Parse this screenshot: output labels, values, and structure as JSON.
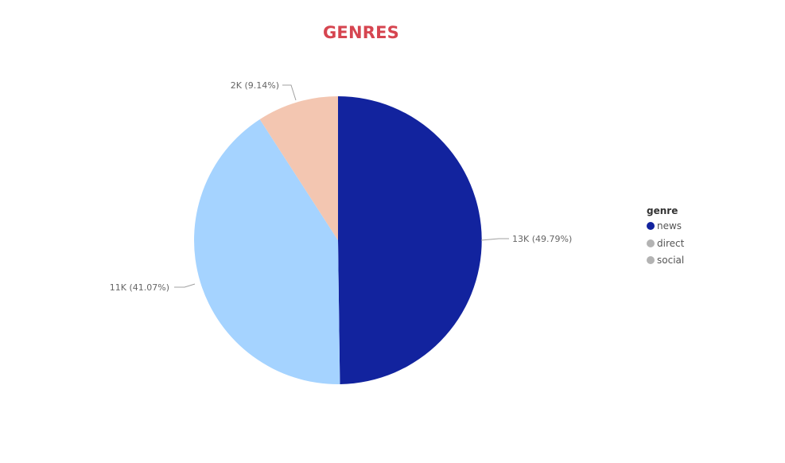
{
  "chart_data": {
    "type": "pie",
    "title": "GENRES",
    "legend_title": "genre",
    "legend_position": "right",
    "slices": [
      {
        "name": "news",
        "value": 49.79,
        "label": "13K (49.79%)",
        "color": "#12239e"
      },
      {
        "name": "direct",
        "value": 41.07,
        "label": "11K (41.07%)",
        "color": "#a5d3ff"
      },
      {
        "name": "social",
        "value": 9.14,
        "label": "2K (9.14%)",
        "color": "#f3c6b1"
      }
    ],
    "legend_items": [
      {
        "label": "news",
        "color": "#12239e"
      },
      {
        "label": "direct",
        "color": "#b3b3b3"
      },
      {
        "label": "social",
        "color": "#b3b3b3"
      }
    ]
  },
  "colors": {
    "title": "#d64550"
  }
}
